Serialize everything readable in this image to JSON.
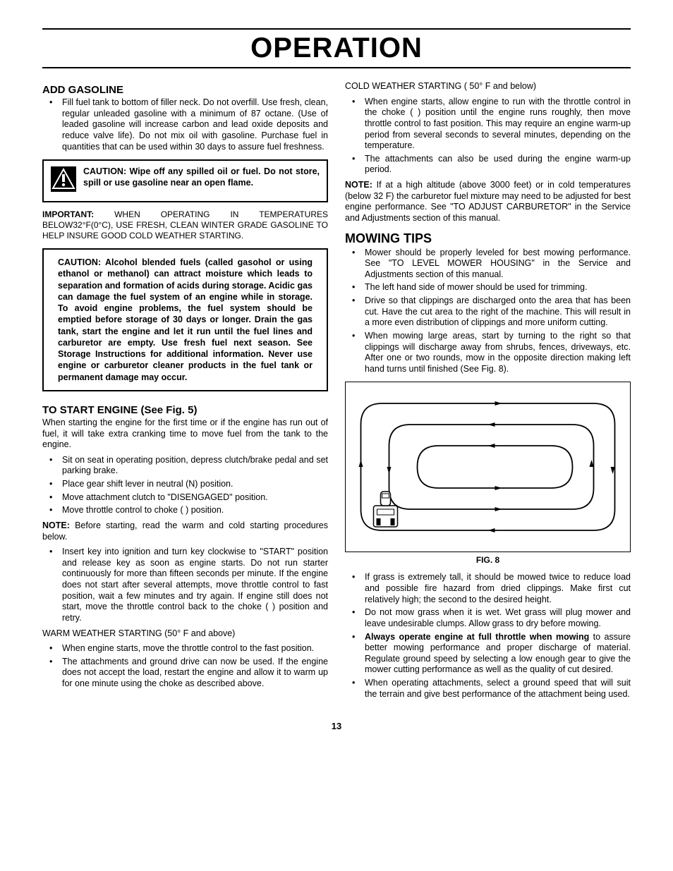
{
  "page_title": "OPERATION",
  "page_number": "13",
  "left": {
    "add_gasoline_heading": "ADD GASOLINE",
    "add_gasoline_bullet": "Fill fuel tank to bottom of filler neck. Do not overfill. Use fresh, clean, regular unleaded gasoline with a minimum of 87 octane.  (Use of  leaded gasoline will increase carbon and lead oxide deposits and reduce valve life).  Do not mix oil with gasoline.  Purchase fuel in quantities that can be used within 30 days to assure fuel freshness.",
    "caution1_label": "CAUTION:",
    "caution1_text": "  Wipe off any spilled oil or fuel.  Do not store, spill or use gasoline near an open flame.",
    "important_label": "IMPORTANT:",
    "important_text": "  WHEN OPERATING IN TEMPERATURES BELOW32°F(0°C), USE FRESH, CLEAN WINTER GRADE GASOLINE TO HELP INSURE GOOD COLD WEATHER STARTING.",
    "caution2_label": "CAUTION:",
    "caution2_text": "  Alcohol blended fuels (called gasohol or using ethanol or methanol) can attract moisture which leads to separation and formation of acids during storage.  Acidic gas can damage the fuel system of an engine while in storage.  To avoid engine problems, the fuel system should be emptied before storage of 30 days or longer.  Drain the gas tank, start the engine and let it run until the fuel lines and carburetor are empty.  Use fresh fuel next season.  See Storage Instructions for additional information.  Never use engine or carburetor cleaner products in the fuel tank or permanent damage may occur.",
    "start_heading": "TO START ENGINE (See Fig. 5)",
    "start_intro": "When starting the engine for the first time or if the engine has run out of fuel, it will take extra cranking time to move fuel from the tank to the engine.",
    "start_bullets_a": [
      "Sit on seat in operating position, depress clutch/brake pedal and set parking brake.",
      "Place gear shift lever in neutral (N) position.",
      "Move attachment clutch to \"DISENGAGED\" position.",
      "Move throttle control to choke (   )  position."
    ],
    "note1_label": "NOTE:",
    "note1_text": "  Before starting, read the warm and cold starting procedures below.",
    "start_bullets_b": [
      "Insert key into ignition and turn key clockwise to \"START\" position and release key as soon as engine starts.  Do not run starter continuously for more than fifteen seconds per minute.  If the engine does not start after several attempts, move throttle control to fast  position, wait a few minutes and try again.  If engine still does not start, move the throttle control back to the choke (   ) position and retry."
    ],
    "warm_heading": "WARM WEATHER STARTING (50° F and above)",
    "warm_bullets": [
      "When engine starts, move the throttle control to the fast position.",
      "The attachments and ground drive can now be used.  If the engine does not accept the load, restart the engine and allow it to warm up for one minute using the choke as described above."
    ]
  },
  "right": {
    "cold_heading": "COLD WEATHER STARTING ( 50° F and below)",
    "cold_bullets": [
      "When engine starts, allow engine to run with the throttle control in the choke (   ) position until the engine runs roughly, then move throttle control to fast position. This may require an engine warm-up period from several seconds to several minutes, depending on the temperature.",
      "The attachments can also be used during the engine warm-up period."
    ],
    "note2_label": "NOTE:",
    "note2_text": "  If at a high altitude (above 3000 feet) or in cold temperatures (below 32 F) the carburetor fuel mixture may need to be adjusted for best engine performance.  See \"TO ADJUST CARBURETOR\" in the Service and Adjustments section of this manual.",
    "mowing_heading": "MOWING TIPS",
    "mowing_bullets_a": [
      "Mower should be properly leveled for best mowing performance.  See \"TO LEVEL MOWER HOUSING\" in the Service and Adjustments section of this manual.",
      "The left hand side of mower should be used for trimming.",
      "Drive so that clippings are discharged onto the area that has been cut.  Have the cut area to the right of the machine.  This will result in a more even distribution of clippings and more uniform cutting.",
      "When mowing large areas, start by turning to the right so that clippings will discharge away from shrubs, fences, driveways, etc.  After one or two rounds, mow in the opposite direction making left hand turns until finished (See Fig. 8)."
    ],
    "fig_caption": "FIG. 8",
    "mowing_bullets_b": [
      "If  grass is extremely tall, it should be mowed twice to reduce load and possible fire hazard from dried clippings.  Make first cut relatively high; the second to the desired height.",
      "Do not mow grass when it is wet.  Wet grass will plug mower and leave undesirable clumps.  Allow grass to dry before mowing.",
      "<b>Always operate engine at full throttle when mowing</b> to assure better mowing performance and proper discharge of material.  Regulate ground speed by selecting a low enough gear to give the mower cutting performance as well as the quality of cut desired.",
      "When operating attachments, select a ground speed that will suit the terrain and give best performance of the attachment being used."
    ]
  }
}
